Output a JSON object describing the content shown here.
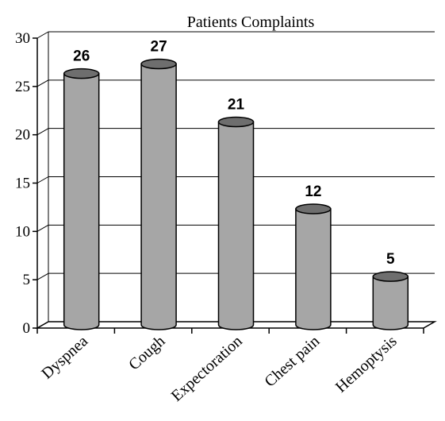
{
  "chart_data": {
    "type": "bar",
    "title": "Patients Complaints",
    "xlabel": "",
    "ylabel": "",
    "ylim": [
      0,
      30
    ],
    "y_ticks": [
      "0",
      "5",
      "10",
      "15",
      "20",
      "25",
      "30"
    ],
    "categories": [
      "Dyspnea",
      "Cough",
      "Expectoration",
      "Chest pain",
      "Hemoptysis"
    ],
    "values": [
      26,
      27,
      21,
      12,
      5
    ],
    "data_labels": [
      "26",
      "27",
      "21",
      "12",
      "5"
    ],
    "grid": true,
    "legend": "none",
    "bar_color": "#a6a6a6",
    "bar_top_color": "#6e6e6e"
  }
}
